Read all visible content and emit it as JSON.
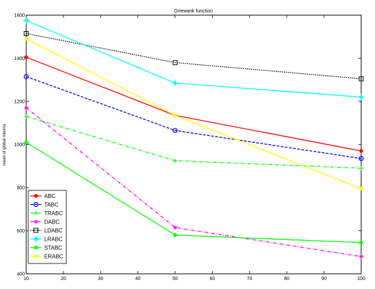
{
  "chart_data": {
    "type": "line",
    "title": "Griewank function",
    "xlabel": "",
    "ylabel": "mean of global minima",
    "x": [
      10,
      50,
      100
    ],
    "xlim": [
      10,
      100
    ],
    "ylim": [
      400,
      1600
    ],
    "xticks": [
      "10",
      "20",
      "30",
      "40",
      "50",
      "60",
      "70",
      "80",
      "90",
      "100"
    ],
    "yticks": [
      "400",
      "600",
      "800",
      "1000",
      "1200",
      "1400",
      "1600"
    ],
    "grid": false,
    "legend_position": "bottom-left",
    "series": [
      {
        "name": "ABC",
        "values": [
          1405,
          1135,
          970
        ],
        "color": "#ff0000",
        "marker": "dot",
        "dash": "solid"
      },
      {
        "name": "TABC",
        "values": [
          1315,
          1065,
          935
        ],
        "color": "#0000ff",
        "marker": "circle",
        "dash": "dashed"
      },
      {
        "name": "TRABC",
        "values": [
          1130,
          925,
          890
        ],
        "color": "#00ff00",
        "marker": "cross",
        "dash": "dashdot"
      },
      {
        "name": "DABC",
        "values": [
          1170,
          615,
          480
        ],
        "color": "#ff00ff",
        "marker": "star",
        "dash": "dashdot"
      },
      {
        "name": "LDABC",
        "values": [
          1515,
          1380,
          1305
        ],
        "color": "#000000",
        "marker": "square",
        "dash": "dotted"
      },
      {
        "name": "LRABC",
        "values": [
          1575,
          1285,
          1220
        ],
        "color": "#00ffff",
        "marker": "hexstar",
        "dash": "solid"
      },
      {
        "name": "STABC",
        "values": [
          1010,
          580,
          545
        ],
        "color": "#00ff00",
        "marker": "dot",
        "dash": "solid"
      },
      {
        "name": "ERABC",
        "values": [
          1490,
          1135,
          795
        ],
        "color": "#ffff00",
        "marker": "dot",
        "dash": "solid"
      }
    ]
  }
}
